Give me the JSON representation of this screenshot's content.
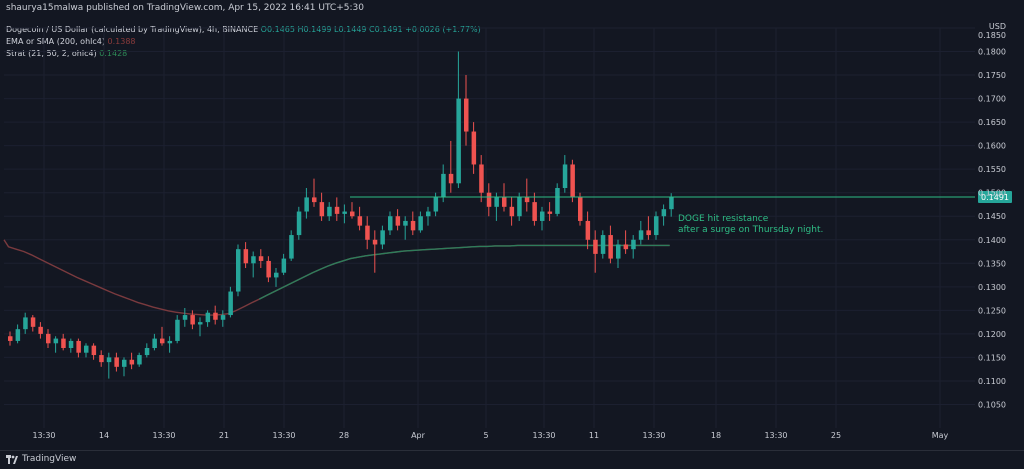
{
  "header": {
    "byline": "shaurya15malwa published on TradingView.com, Apr 15, 2022 16:41 UTC+5:30"
  },
  "legend": {
    "title": "Dogecoin / US Dollar (calculated by TradingView), 4h, BINANCE",
    "ohlc": "O0.1465  H0.1499  L0.1449  C0.1491  +0.0026 (+1.77%)",
    "ema_label": "EMA or SMA (200, ohlc4)",
    "ema_value": "0.1388",
    "strat_label": "Strat (21, 50, 2, ohlc4)",
    "strat_value": "0.1428"
  },
  "currency": {
    "code": "USD",
    "sub": "0.1850"
  },
  "annotation": {
    "line1": "DOGE hit resistance",
    "line2": "after a surge on Thursday night."
  },
  "footer": {
    "brand": "TradingView"
  },
  "colors": {
    "background": "#131722",
    "bull": "#26a69a",
    "bear": "#ef5350",
    "ema": "#7a3a3e",
    "strat": "#2e7d5b",
    "resistance": "#2ebd85"
  },
  "chart_data": {
    "type": "candlestick",
    "symbol": "DOGE/USD",
    "interval": "4h",
    "ylim": [
      0.1,
      0.185
    ],
    "y_ticks": [
      "0.1850",
      "0.1800",
      "0.1750",
      "0.1700",
      "0.1650",
      "0.1600",
      "0.1550",
      "0.1500",
      "0.1450",
      "0.1400",
      "0.1350",
      "0.1300",
      "0.1250",
      "0.1200",
      "0.1150",
      "0.1100",
      "0.1050"
    ],
    "x_ticks": [
      "13:30",
      "14",
      "13:30",
      "21",
      "13:30",
      "28",
      "Apr",
      "5",
      "13:30",
      "11",
      "13:30",
      "18",
      "13:30",
      "25",
      "May"
    ],
    "current_price_label": "0.1491",
    "resistance_level": 0.1491,
    "candles": [
      [
        0.1195,
        0.1205,
        0.1175,
        0.1185
      ],
      [
        0.1185,
        0.122,
        0.118,
        0.121
      ],
      [
        0.121,
        0.1245,
        0.12,
        0.1235
      ],
      [
        0.1235,
        0.124,
        0.1205,
        0.1215
      ],
      [
        0.1215,
        0.1225,
        0.119,
        0.12
      ],
      [
        0.12,
        0.121,
        0.117,
        0.118
      ],
      [
        0.118,
        0.1195,
        0.116,
        0.119
      ],
      [
        0.119,
        0.12,
        0.1165,
        0.117
      ],
      [
        0.117,
        0.119,
        0.116,
        0.1185
      ],
      [
        0.1185,
        0.119,
        0.115,
        0.116
      ],
      [
        0.116,
        0.118,
        0.115,
        0.1175
      ],
      [
        0.1175,
        0.118,
        0.1145,
        0.1155
      ],
      [
        0.1155,
        0.1165,
        0.113,
        0.114
      ],
      [
        0.114,
        0.116,
        0.1105,
        0.115
      ],
      [
        0.115,
        0.116,
        0.112,
        0.113
      ],
      [
        0.113,
        0.115,
        0.111,
        0.1145
      ],
      [
        0.1145,
        0.116,
        0.1125,
        0.1135
      ],
      [
        0.1135,
        0.116,
        0.113,
        0.1155
      ],
      [
        0.1155,
        0.118,
        0.115,
        0.117
      ],
      [
        0.117,
        0.12,
        0.1165,
        0.119
      ],
      [
        0.119,
        0.1215,
        0.1175,
        0.118
      ],
      [
        0.118,
        0.1195,
        0.116,
        0.1185
      ],
      [
        0.1185,
        0.124,
        0.118,
        0.123
      ],
      [
        0.123,
        0.1255,
        0.1215,
        0.124
      ],
      [
        0.124,
        0.125,
        0.121,
        0.122
      ],
      [
        0.122,
        0.1235,
        0.1195,
        0.1225
      ],
      [
        0.1225,
        0.125,
        0.1215,
        0.1245
      ],
      [
        0.1245,
        0.126,
        0.122,
        0.123
      ],
      [
        0.123,
        0.125,
        0.1215,
        0.124
      ],
      [
        0.124,
        0.13,
        0.1235,
        0.129
      ],
      [
        0.129,
        0.139,
        0.128,
        0.138
      ],
      [
        0.138,
        0.1395,
        0.134,
        0.135
      ],
      [
        0.135,
        0.1375,
        0.132,
        0.1365
      ],
      [
        0.1365,
        0.138,
        0.134,
        0.1355
      ],
      [
        0.1355,
        0.1365,
        0.131,
        0.132
      ],
      [
        0.132,
        0.134,
        0.13,
        0.133
      ],
      [
        0.133,
        0.137,
        0.1325,
        0.136
      ],
      [
        0.136,
        0.142,
        0.1355,
        0.141
      ],
      [
        0.141,
        0.147,
        0.14,
        0.146
      ],
      [
        0.146,
        0.151,
        0.1445,
        0.149
      ],
      [
        0.149,
        0.153,
        0.147,
        0.148
      ],
      [
        0.148,
        0.15,
        0.144,
        0.145
      ],
      [
        0.145,
        0.148,
        0.144,
        0.147
      ],
      [
        0.147,
        0.149,
        0.144,
        0.1455
      ],
      [
        0.1455,
        0.1475,
        0.1435,
        0.146
      ],
      [
        0.146,
        0.148,
        0.1445,
        0.145
      ],
      [
        0.145,
        0.147,
        0.142,
        0.143
      ],
      [
        0.143,
        0.145,
        0.138,
        0.14
      ],
      [
        0.14,
        0.142,
        0.133,
        0.139
      ],
      [
        0.139,
        0.143,
        0.138,
        0.142
      ],
      [
        0.142,
        0.146,
        0.141,
        0.145
      ],
      [
        0.145,
        0.1465,
        0.142,
        0.143
      ],
      [
        0.143,
        0.145,
        0.14,
        0.144
      ],
      [
        0.144,
        0.146,
        0.141,
        0.142
      ],
      [
        0.142,
        0.146,
        0.1415,
        0.145
      ],
      [
        0.145,
        0.147,
        0.143,
        0.146
      ],
      [
        0.146,
        0.15,
        0.145,
        0.149
      ],
      [
        0.149,
        0.156,
        0.148,
        0.154
      ],
      [
        0.154,
        0.161,
        0.15,
        0.152
      ],
      [
        0.152,
        0.18,
        0.151,
        0.17
      ],
      [
        0.17,
        0.175,
        0.16,
        0.163
      ],
      [
        0.163,
        0.165,
        0.154,
        0.156
      ],
      [
        0.156,
        0.158,
        0.148,
        0.15
      ],
      [
        0.15,
        0.152,
        0.145,
        0.147
      ],
      [
        0.147,
        0.15,
        0.144,
        0.149
      ],
      [
        0.149,
        0.152,
        0.146,
        0.147
      ],
      [
        0.147,
        0.149,
        0.143,
        0.145
      ],
      [
        0.145,
        0.15,
        0.144,
        0.149
      ],
      [
        0.149,
        0.153,
        0.146,
        0.148
      ],
      [
        0.148,
        0.15,
        0.143,
        0.144
      ],
      [
        0.144,
        0.147,
        0.142,
        0.146
      ],
      [
        0.146,
        0.148,
        0.144,
        0.1455
      ],
      [
        0.1455,
        0.152,
        0.145,
        0.151
      ],
      [
        0.151,
        0.158,
        0.15,
        0.156
      ],
      [
        0.156,
        0.157,
        0.148,
        0.149
      ],
      [
        0.149,
        0.15,
        0.143,
        0.144
      ],
      [
        0.144,
        0.146,
        0.138,
        0.14
      ],
      [
        0.14,
        0.142,
        0.133,
        0.137
      ],
      [
        0.137,
        0.142,
        0.136,
        0.141
      ],
      [
        0.141,
        0.143,
        0.135,
        0.136
      ],
      [
        0.136,
        0.14,
        0.134,
        0.139
      ],
      [
        0.139,
        0.142,
        0.137,
        0.138
      ],
      [
        0.138,
        0.141,
        0.136,
        0.14
      ],
      [
        0.14,
        0.144,
        0.139,
        0.142
      ],
      [
        0.142,
        0.145,
        0.14,
        0.141
      ],
      [
        0.141,
        0.146,
        0.14,
        0.145
      ],
      [
        0.145,
        0.1475,
        0.143,
        0.1465
      ],
      [
        0.1465,
        0.1499,
        0.1449,
        0.1491
      ]
    ],
    "ema200": [
      0.1385,
      0.138,
      0.1375,
      0.1368,
      0.136,
      0.1352,
      0.1344,
      0.1336,
      0.1328,
      0.132,
      0.1313,
      0.1306,
      0.1299,
      0.1292,
      0.1285,
      0.1279,
      0.1273,
      0.1267,
      0.1262,
      0.1257,
      0.1253,
      0.1249,
      0.1246,
      0.1244,
      0.1242,
      0.1241,
      0.124,
      0.124,
      0.1241,
      0.1243,
      0.125,
      0.1258,
      0.1266,
      0.1274,
      0.1282,
      0.129,
      0.1298,
      0.1306,
      0.1314,
      0.1322,
      0.133,
      0.1337,
      0.1344,
      0.135,
      0.1355,
      0.136,
      0.1363,
      0.1366,
      0.1368,
      0.137,
      0.1372,
      0.1374,
      0.1376,
      0.1377,
      0.1378,
      0.1379,
      0.138,
      0.1381,
      0.1382,
      0.1383,
      0.1384,
      0.1385,
      0.1386,
      0.1386,
      0.1387,
      0.1387,
      0.1387,
      0.1388,
      0.1388,
      0.1388,
      0.1388,
      0.1388,
      0.1388,
      0.1388,
      0.1388,
      0.1388,
      0.1388,
      0.1388,
      0.1388,
      0.1388,
      0.1388,
      0.1388,
      0.1388,
      0.1388,
      0.1388,
      0.1388,
      0.1388,
      0.1388
    ]
  }
}
